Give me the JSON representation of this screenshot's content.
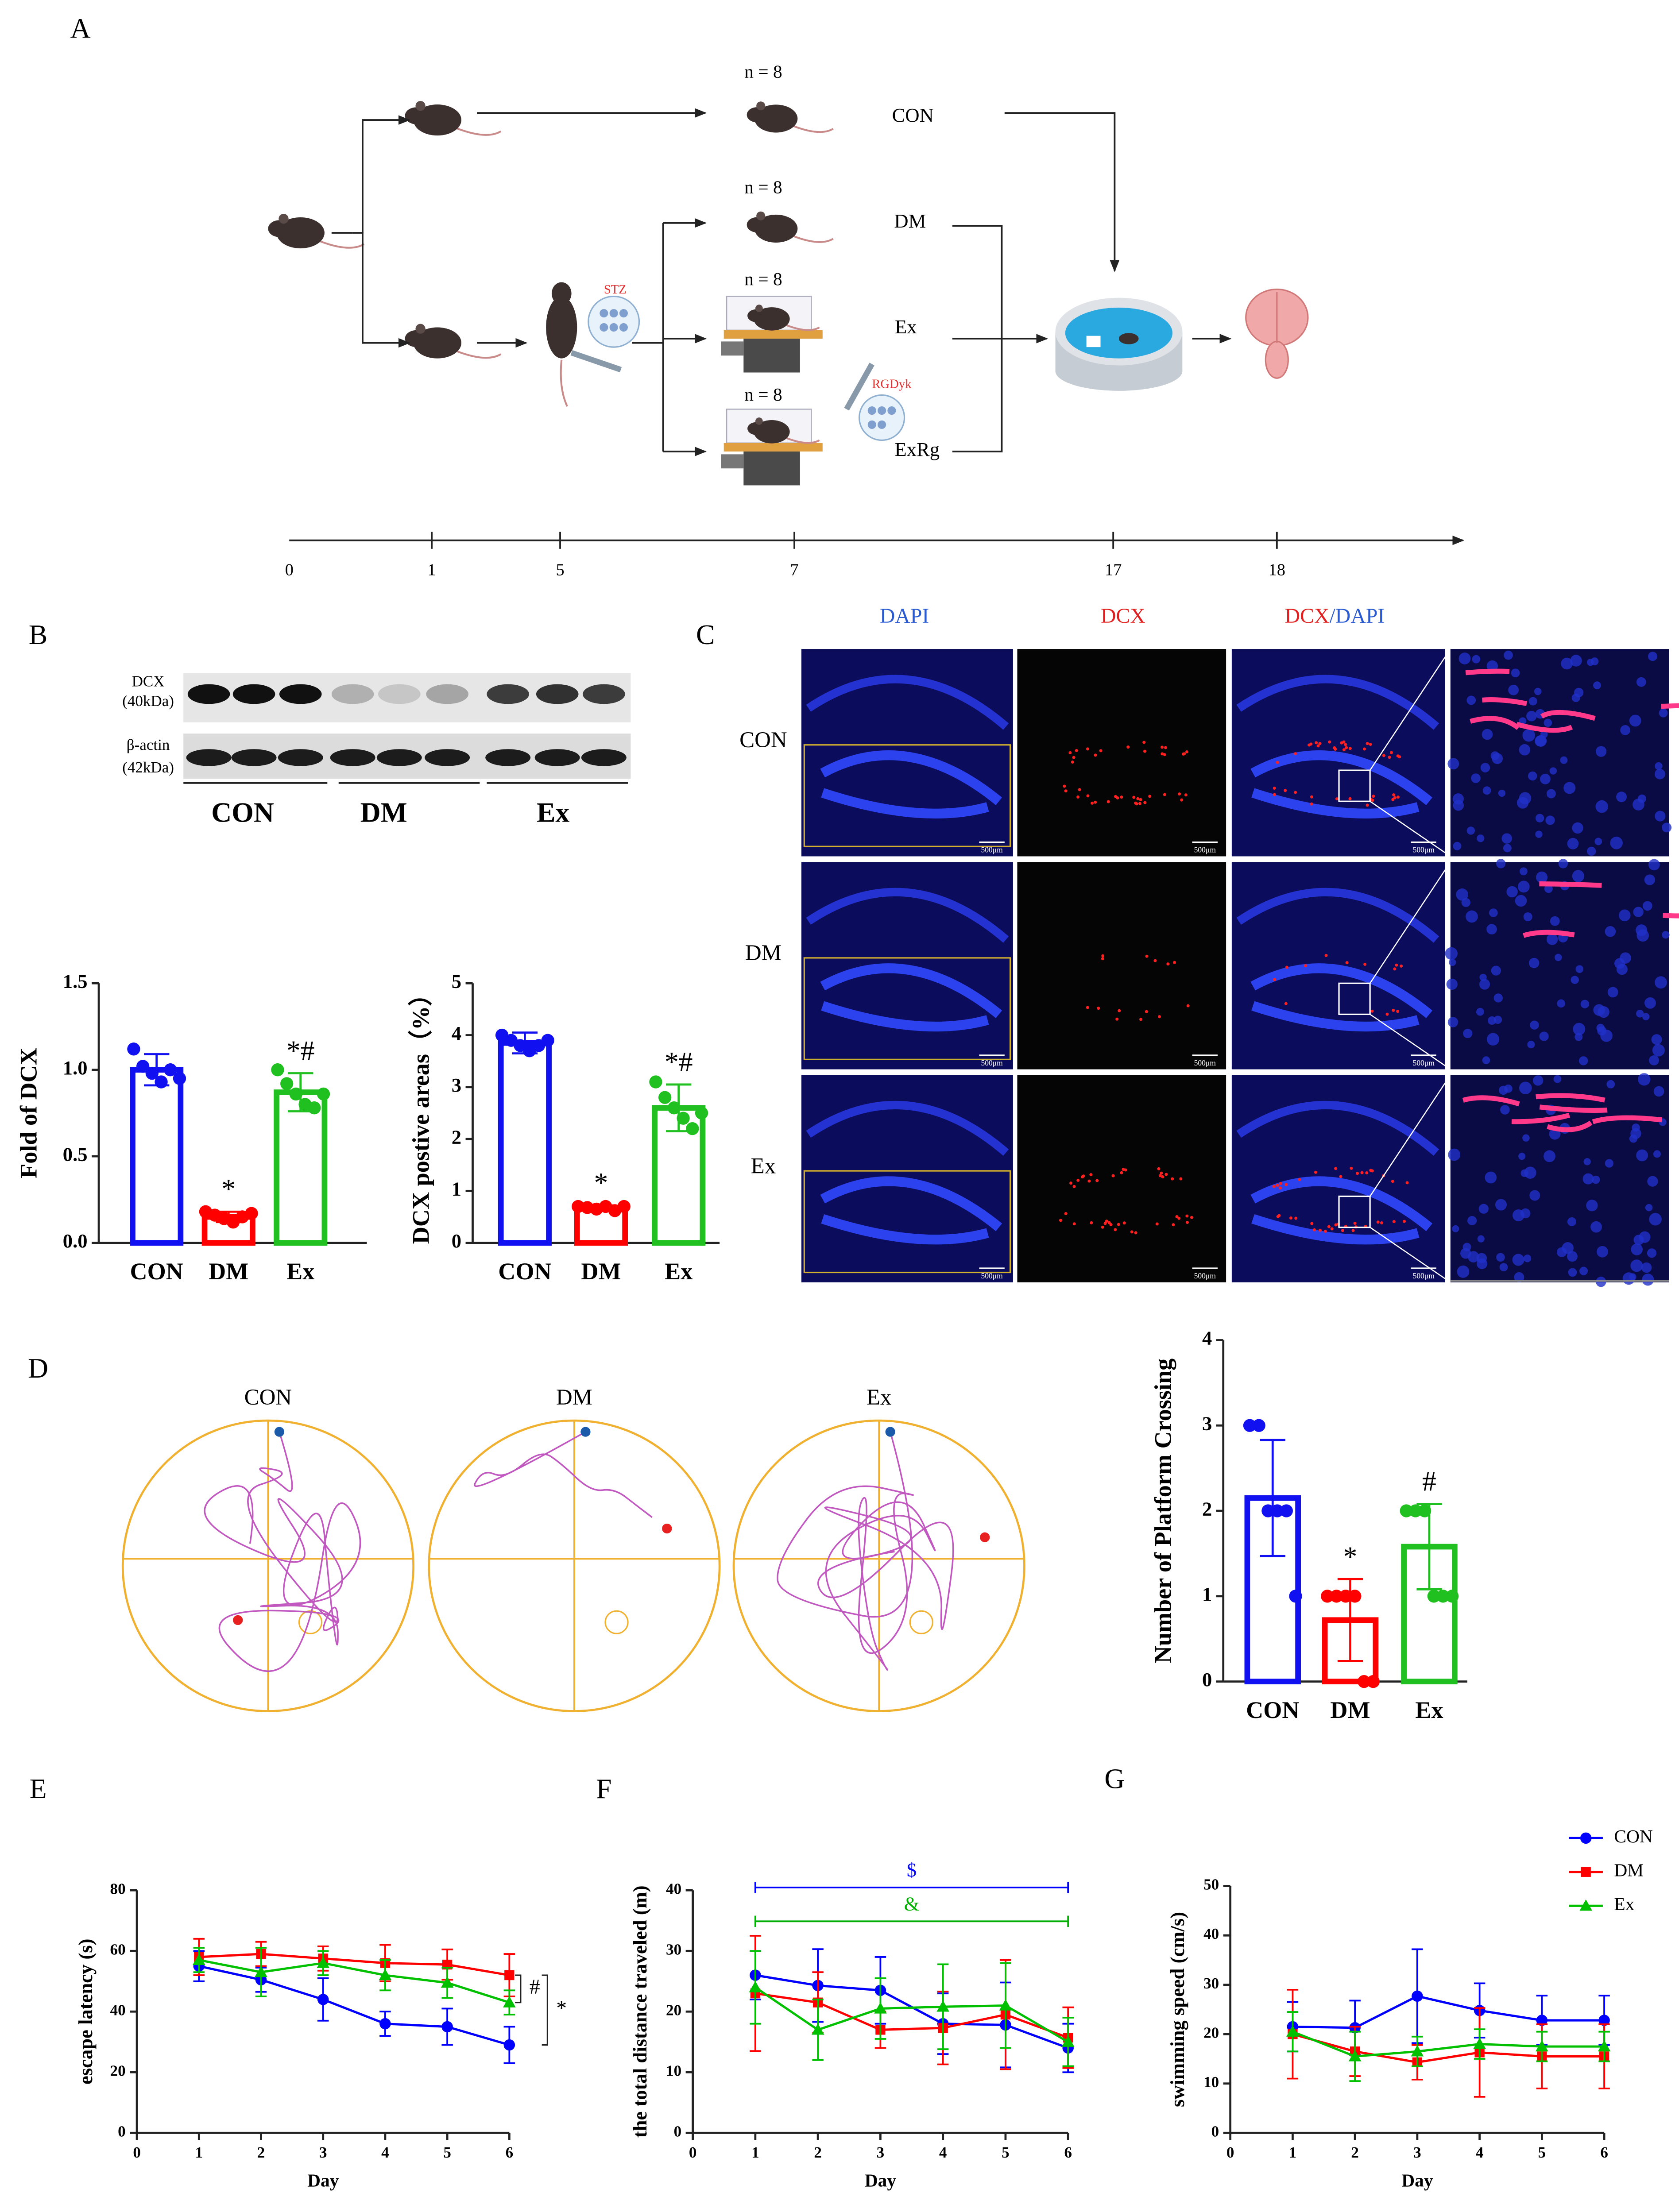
{
  "panel_labels": [
    "A",
    "B",
    "C",
    "D",
    "E",
    "F",
    "G"
  ],
  "panel_a": {
    "group_sizes": [
      "n = 8",
      "n = 8",
      "n = 8",
      "n = 8"
    ],
    "groups": [
      "CON",
      "DM",
      "Ex",
      "ExRg"
    ],
    "drugs": [
      "STZ",
      "RGDyk"
    ],
    "timeline": [
      "0",
      "1",
      "5",
      "7",
      "17",
      "18"
    ]
  },
  "panel_b": {
    "bands": [
      "DCX",
      "(40kDa)",
      "β-actin",
      "(42kDa)"
    ],
    "groups": [
      "CON",
      "DM",
      "Ex"
    ]
  },
  "panel_c": {
    "headers": [
      "DAPI",
      "DCX"
    ],
    "merge_header": [
      "DCX",
      "/DAPI"
    ],
    "rows": [
      "CON",
      "DM",
      "Ex"
    ],
    "scale_bar": "500μm"
  },
  "panel_d": {
    "titles": [
      "CON",
      "DM",
      "Ex"
    ]
  },
  "chart_data": [
    {
      "type": "bar",
      "ylabel": "Fold of DCX",
      "categories": [
        "CON",
        "DM",
        "Ex"
      ],
      "values": [
        1.0,
        0.15,
        0.87
      ],
      "errors": [
        0.09,
        0.03,
        0.11
      ],
      "points": [
        [
          1.12,
          1.02,
          0.98,
          0.93,
          1.0,
          0.95
        ],
        [
          0.18,
          0.16,
          0.14,
          0.12,
          0.15,
          0.17
        ],
        [
          1.0,
          0.92,
          0.86,
          0.8,
          0.78,
          0.86
        ]
      ],
      "colors": [
        "#1010f0",
        "#ff0000",
        "#20c020"
      ],
      "ylim": [
        0,
        1.5
      ],
      "yticks": [
        {
          "value": 0,
          "label": "0.0"
        },
        0.5,
        {
          "value": 1,
          "label": "1.0"
        },
        1.5
      ],
      "annotations": [
        {
          "category": "DM",
          "text": "*"
        },
        {
          "category": "Ex",
          "text": "*#"
        }
      ]
    },
    {
      "type": "bar",
      "ylabel": "DCX postive areas（%）",
      "categories": [
        "CON",
        "DM",
        "Ex"
      ],
      "values": [
        3.85,
        0.67,
        2.6
      ],
      "errors": [
        0.2,
        0.05,
        0.45
      ],
      "points": [
        [
          4.0,
          3.9,
          3.8,
          3.7,
          3.8,
          3.9
        ],
        [
          0.7,
          0.68,
          0.65,
          0.7,
          0.62,
          0.7
        ],
        [
          3.1,
          2.8,
          2.6,
          2.4,
          2.2,
          2.5
        ]
      ],
      "colors": [
        "#1010f0",
        "#ff0000",
        "#20c020"
      ],
      "ylim": [
        0,
        5
      ],
      "yticks": [
        0,
        1,
        2,
        3,
        4,
        5
      ],
      "annotations": [
        {
          "category": "DM",
          "text": "*"
        },
        {
          "category": "Ex",
          "text": "*#"
        }
      ]
    },
    {
      "type": "bar",
      "ylabel": "Number of Platform Crossing",
      "categories": [
        "CON",
        "DM",
        "Ex"
      ],
      "values": [
        2.15,
        0.72,
        1.58
      ],
      "errors": [
        0.68,
        0.48,
        0.5
      ],
      "points": [
        [
          3,
          3,
          2,
          2,
          2,
          1
        ],
        [
          1,
          1,
          1,
          1,
          0,
          0
        ],
        [
          2,
          2,
          2,
          1,
          1,
          1
        ]
      ],
      "colors": [
        "#1010f0",
        "#ff0000",
        "#20c020"
      ],
      "ylim": [
        0,
        4
      ],
      "yticks": [
        0,
        1,
        2,
        3,
        4
      ],
      "annotations": [
        {
          "category": "DM",
          "text": "*"
        },
        {
          "category": "Ex",
          "text": "#"
        }
      ]
    },
    {
      "type": "line",
      "xlabel": "Day",
      "ylabel": "escape latency (s)",
      "x": [
        1,
        2,
        3,
        4,
        5,
        6
      ],
      "xlim": [
        0,
        6
      ],
      "xticks": [
        0,
        1,
        2,
        3,
        4,
        5,
        6
      ],
      "ylim": [
        0,
        80
      ],
      "yticks": [
        0,
        20,
        40,
        60,
        80
      ],
      "series": [
        {
          "color": "#0000ff",
          "values": [
            55,
            50.5,
            44,
            36,
            35,
            29
          ],
          "errors": [
            5,
            4,
            7,
            4,
            6,
            6
          ]
        },
        {
          "color": "#ff0000",
          "values": [
            58,
            59,
            57.5,
            56,
            55.5,
            52
          ],
          "errors": [
            6,
            4,
            4,
            6,
            5,
            7
          ]
        },
        {
          "color": "#00c000",
          "values": [
            57,
            53,
            56,
            52,
            49.5,
            43
          ],
          "errors": [
            4,
            8,
            4,
            5,
            5,
            4
          ]
        }
      ],
      "annotations": [
        {
          "text": "#"
        },
        {
          "text": "*"
        }
      ]
    },
    {
      "type": "line",
      "xlabel": "Day",
      "ylabel": "the total distance traveled (m)",
      "x": [
        1,
        2,
        3,
        4,
        5,
        6
      ],
      "xlim": [
        0,
        6
      ],
      "xticks": [
        0,
        1,
        2,
        3,
        4,
        5,
        6
      ],
      "ylim": [
        0,
        40
      ],
      "yticks": [
        0,
        10,
        20,
        30,
        40
      ],
      "series": [
        {
          "color": "#0000ff",
          "values": [
            26,
            24.3,
            23.5,
            18,
            17.8,
            14
          ],
          "errors": [
            4,
            6,
            5.5,
            5,
            7,
            4
          ]
        },
        {
          "color": "#ff0000",
          "values": [
            23,
            21.5,
            17,
            17.3,
            19.5,
            15.7
          ],
          "errors": [
            9.5,
            5,
            3,
            6,
            9,
            5
          ]
        },
        {
          "color": "#00c000",
          "values": [
            24,
            17,
            20.5,
            20.8,
            21,
            15
          ],
          "errors": [
            6,
            5,
            5,
            7,
            7,
            4
          ]
        }
      ],
      "annotations": [
        {
          "text": "$",
          "color": "#0000ff"
        },
        {
          "text": "&",
          "color": "#00b000"
        }
      ]
    },
    {
      "type": "line",
      "xlabel": "Day",
      "ylabel": "swimming speed (cm/s)",
      "x": [
        1,
        2,
        3,
        4,
        5,
        6
      ],
      "xlim": [
        0,
        6
      ],
      "xticks": [
        0,
        1,
        2,
        3,
        4,
        5,
        6
      ],
      "ylim": [
        0,
        50
      ],
      "yticks": [
        0,
        10,
        20,
        30,
        40,
        50
      ],
      "legend": "upper right",
      "series": [
        {
          "name": "CON",
          "color": "#0000ff",
          "values": [
            21.5,
            21.3,
            27.7,
            24.8,
            22.8,
            22.8
          ],
          "errors": [
            5,
            5.5,
            9.5,
            5.5,
            5,
            5
          ]
        },
        {
          "name": "DM",
          "color": "#ff0000",
          "values": [
            20,
            16.5,
            14.3,
            16.3,
            15.5,
            15.5
          ],
          "errors": [
            9,
            5,
            3.5,
            9,
            6.5,
            6.5
          ]
        },
        {
          "name": "Ex",
          "color": "#00c000",
          "values": [
            20.5,
            15.5,
            16.5,
            18,
            17.5,
            17.5
          ],
          "errors": [
            4,
            5,
            3,
            3,
            3,
            3
          ]
        }
      ]
    }
  ]
}
